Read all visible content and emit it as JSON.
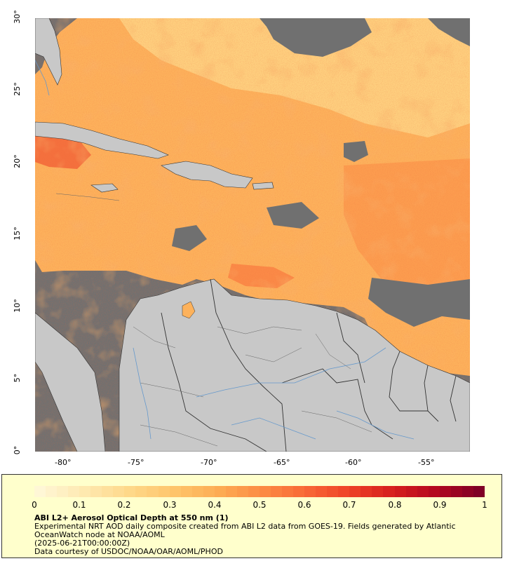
{
  "map": {
    "lat_ticks": [
      "0°",
      "5°",
      "10°",
      "15°",
      "20°",
      "25°",
      "30°"
    ],
    "lon_ticks": [
      "-80°",
      "-75°",
      "-70°",
      "-65°",
      "-60°",
      "-55°"
    ],
    "colors": {
      "land": "#c8c8c8",
      "no_data": "#707070",
      "borders": "#333333",
      "rivers": "#6699cc"
    }
  },
  "legend": {
    "colorbar_ticks": [
      "0",
      "0.1",
      "0.2",
      "0.3",
      "0.4",
      "0.5",
      "0.6",
      "0.7",
      "0.8",
      "0.9",
      "1"
    ],
    "colors": [
      "#fff7d6",
      "#fee9b0",
      "#fed98b",
      "#fec66c",
      "#fdae55",
      "#fc8d45",
      "#f96a37",
      "#ef4428",
      "#d7201e",
      "#b4081f",
      "#800026"
    ],
    "title": "ABI L2+ Aerosol Optical Depth at 550 nm (1)",
    "line1": "Experimental NRT AOD daily composite created from ABI L2 data from GOES-19. Fields generated by Atlantic",
    "line2": "OceanWatch node at NOAA/AOML",
    "line3": "(2025-06-21T00:00:00Z)",
    "line4": "Data courtesy of USDOC/NOAA/OAR/AOML/PHOD"
  }
}
